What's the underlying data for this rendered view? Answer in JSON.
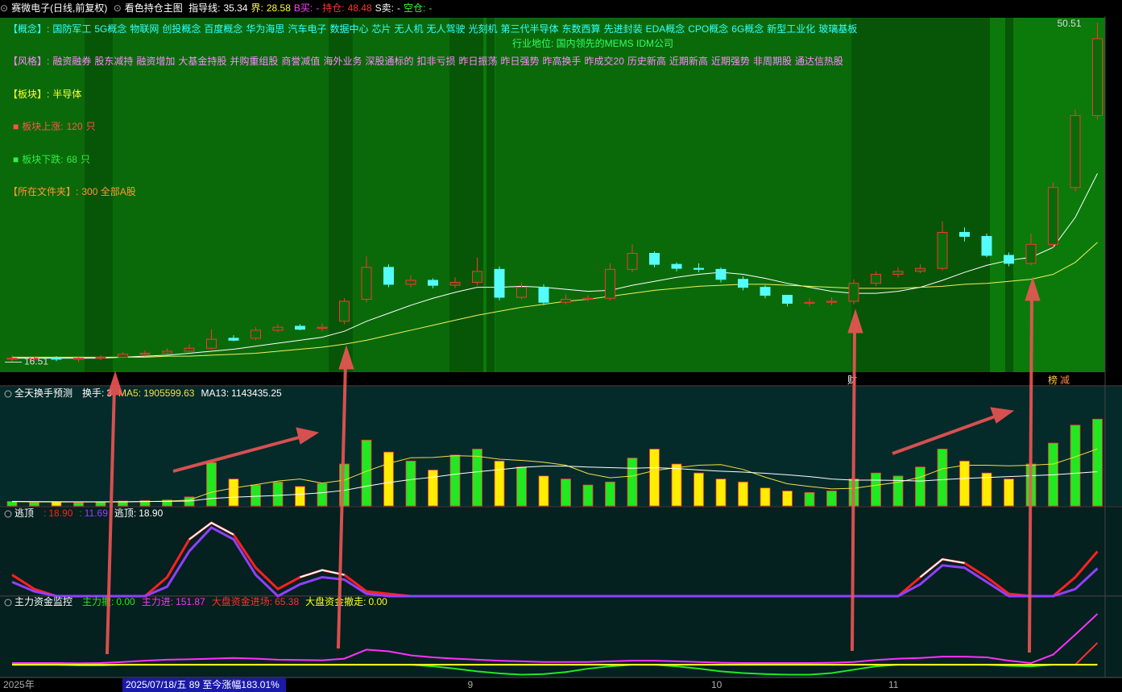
{
  "header": {
    "stock": "赛微电子(日线,前复权)",
    "indicator": "看色持仓主图",
    "items": [
      {
        "label": "指导线:",
        "value": 35.34,
        "color": "#ffffff"
      },
      {
        "label": "界:",
        "value": 28.58,
        "color": "#ffff33"
      },
      {
        "label": "B买:",
        "value": "-",
        "color": "#ff44ff"
      },
      {
        "label": "持仓:",
        "value": 48.48,
        "color": "#ff3333"
      },
      {
        "label": "S卖:",
        "value": "-",
        "color": "#ffffff"
      },
      {
        "label": "空仓:",
        "value": "-",
        "color": "#33ff33"
      }
    ]
  },
  "info": {
    "concept": {
      "label": "【概念】:",
      "items": [
        "国防军工",
        "5G概念",
        "物联网",
        "创投概念",
        "百度概念",
        "华为海思",
        "汽车电子",
        "数据中心",
        "芯片",
        "无人机",
        "无人驾驶",
        "光刻机",
        "第三代半导体",
        "东数西算",
        "先进封装",
        "EDA概念",
        "CPO概念",
        "6G概念",
        "新型工业化",
        "玻璃基板"
      ]
    },
    "position": "行业地位: 国内领先的MEMS IDM公司",
    "style": {
      "label": "【风格】:",
      "items": [
        "融资融券",
        "股东减持",
        "融资增加",
        "大基金持股",
        "并购重组股",
        "商誉减值",
        "海外业务",
        "深股通标的",
        "扣非亏损",
        "昨日振荡",
        "昨日强势",
        "昨高换手",
        "昨成交20",
        "历史新高",
        "近期新高",
        "近期强势",
        "非周期股",
        "通达信热股"
      ]
    },
    "sector": {
      "label": "【板块】:",
      "value": "半导体"
    },
    "rise": {
      "label": "板块上涨:",
      "count": 120,
      "unit": "只"
    },
    "fall": {
      "label": "板块下跌:",
      "count": 68,
      "unit": "只"
    },
    "folder": {
      "label": "【所在文件夹】:",
      "value": "300 全部A股"
    }
  },
  "markers": [
    "财",
    "榜",
    "减"
  ],
  "status": "2025/07/18/五 89 至今涨幅183.01%",
  "chart_data": [
    {
      "type": "candlestick",
      "categories": [
        "2025年",
        null,
        null,
        null,
        null,
        null,
        null,
        null,
        null,
        null,
        null,
        null,
        null,
        null,
        null,
        null,
        null,
        null,
        null,
        null,
        null,
        "9",
        null,
        null,
        null,
        null,
        null,
        null,
        null,
        null,
        null,
        null,
        "10",
        null,
        null,
        null,
        null,
        null,
        null,
        null,
        "11",
        null,
        null,
        null,
        null,
        null,
        null,
        null,
        null,
        null
      ],
      "open": [
        16.8,
        16.9,
        16.9,
        16.8,
        16.9,
        17.0,
        17.3,
        17.4,
        17.6,
        17.9,
        18.9,
        18.9,
        19.7,
        20.1,
        19.9,
        20.6,
        22.8,
        26.0,
        24.3,
        24.7,
        24.2,
        24.5,
        25.8,
        23.0,
        24.0,
        22.5,
        22.8,
        22.9,
        25.8,
        27.4,
        26.3,
        25.9,
        25.8,
        24.8,
        24.0,
        23.2,
        22.4,
        22.5,
        22.6,
        24.4,
        25.3,
        25.6,
        25.9,
        29.5,
        29.1,
        27.2,
        26.4,
        28.3,
        34.0,
        41.2
      ],
      "high": [
        17.2,
        17.1,
        17.1,
        17.1,
        17.2,
        17.5,
        17.7,
        17.9,
        18.3,
        19.8,
        19.2,
        20.0,
        20.3,
        20.3,
        20.4,
        22.9,
        27.1,
        26.3,
        25.2,
        24.9,
        25.0,
        27.0,
        26.1,
        24.5,
        24.3,
        23.3,
        23.2,
        26.4,
        28.3,
        27.6,
        26.5,
        26.4,
        26.0,
        25.1,
        24.2,
        23.1,
        22.9,
        23.0,
        24.8,
        25.6,
        26.0,
        26.3,
        30.6,
        30.0,
        29.4,
        27.5,
        29.4,
        34.5,
        41.8,
        50.51
      ],
      "low": [
        16.5,
        16.6,
        16.6,
        16.5,
        16.7,
        16.9,
        17.1,
        17.3,
        17.5,
        17.8,
        18.6,
        18.7,
        19.5,
        19.7,
        19.6,
        20.3,
        22.5,
        24.0,
        24.0,
        23.9,
        23.9,
        24.2,
        22.7,
        22.8,
        22.2,
        22.3,
        22.6,
        22.7,
        25.5,
        26.0,
        25.6,
        25.5,
        24.5,
        23.7,
        22.9,
        22.1,
        22.1,
        22.2,
        22.3,
        24.1,
        25.0,
        25.4,
        25.7,
        28.6,
        27.0,
        26.1,
        26.2,
        28.0,
        33.6,
        40.8
      ],
      "close": [
        16.9,
        16.9,
        16.8,
        16.9,
        17.0,
        17.3,
        17.4,
        17.6,
        17.9,
        18.8,
        18.7,
        19.7,
        20.0,
        19.8,
        20.0,
        22.6,
        26.0,
        24.3,
        24.7,
        24.2,
        24.5,
        25.6,
        23.0,
        24.0,
        22.5,
        22.8,
        22.9,
        25.8,
        27.4,
        26.3,
        25.9,
        25.8,
        24.8,
        24.0,
        23.2,
        22.4,
        22.5,
        22.6,
        24.4,
        25.3,
        25.6,
        25.9,
        29.5,
        29.1,
        27.2,
        26.4,
        28.3,
        34.0,
        41.2,
        48.9
      ],
      "up_color": "#ff3232",
      "down_color": "#54fcfc",
      "series": [
        {
          "color": "#ffffff",
          "values": [
            16.9,
            16.9,
            16.9,
            16.9,
            16.9,
            17.0,
            17.1,
            17.2,
            17.4,
            17.6,
            17.8,
            18.1,
            18.4,
            18.7,
            19.0,
            19.6,
            20.6,
            21.4,
            22.2,
            22.9,
            23.5,
            24.0,
            24.0,
            24.1,
            24.0,
            23.8,
            23.6,
            23.7,
            24.2,
            24.6,
            25.0,
            25.3,
            25.5,
            25.3,
            24.9,
            24.4,
            24.0,
            23.6,
            23.4,
            23.4,
            23.6,
            24.0,
            24.7,
            25.5,
            26.2,
            26.7,
            27.0,
            28.0,
            31.0,
            35.4
          ]
        },
        {
          "color": "#f0f060",
          "values": [
            17.0,
            17.0,
            17.0,
            17.0,
            17.0,
            17.0,
            17.0,
            17.1,
            17.1,
            17.2,
            17.3,
            17.4,
            17.6,
            17.8,
            18.0,
            18.3,
            18.7,
            19.2,
            19.7,
            20.2,
            20.7,
            21.2,
            21.6,
            22.0,
            22.3,
            22.6,
            22.8,
            23.1,
            23.4,
            23.7,
            23.9,
            24.1,
            24.2,
            24.3,
            24.3,
            24.2,
            24.1,
            24.0,
            23.9,
            23.9,
            23.9,
            24.0,
            24.1,
            24.3,
            24.4,
            24.6,
            24.8,
            25.3,
            26.5,
            28.5
          ]
        }
      ],
      "high_label": 50.51,
      "low_label": 16.51,
      "ylim": [
        15.5,
        51
      ]
    },
    {
      "type": "bar",
      "title": "全天换手预测",
      "ylim": [
        0,
        3500000
      ],
      "series": [
        {
          "name": "换手:",
          "legend_value": "3",
          "style": "bar",
          "color": "#22e822",
          "down_color": "#ffee00",
          "legend_color": "#ffffff",
          "values": [
            150000,
            120000,
            130000,
            110000,
            140000,
            160000,
            180000,
            200000,
            300000,
            1450000,
            900000,
            700000,
            800000,
            650000,
            750000,
            1400000,
            2200000,
            1800000,
            1500000,
            1200000,
            1700000,
            1900000,
            1500000,
            1300000,
            1000000,
            900000,
            700000,
            800000,
            1600000,
            1900000,
            1400000,
            1100000,
            900000,
            800000,
            600000,
            500000,
            450000,
            500000,
            900000,
            1100000,
            1000000,
            1300000,
            1900000,
            1500000,
            1100000,
            900000,
            1400000,
            2100000,
            2700000,
            2900000
          ]
        },
        {
          "name": "MA5:",
          "style": "line",
          "color": "#f0e040",
          "values": [
            140000,
            135000,
            130000,
            132000,
            130000,
            132000,
            144000,
            158000,
            196000,
            458000,
            598000,
            710000,
            830000,
            900000,
            760000,
            860000,
            1160000,
            1420000,
            1610000,
            1620000,
            1680000,
            1660000,
            1560000,
            1520000,
            1460000,
            1360000,
            1080000,
            940000,
            1000000,
            1180000,
            1280000,
            1360000,
            1380000,
            1220000,
            960000,
            740000,
            650000,
            570000,
            590000,
            690000,
            790000,
            960000,
            1240000,
            1360000,
            1360000,
            1340000,
            1360000,
            1400000,
            1640000,
            1905599.63
          ]
        },
        {
          "name": "MA13:",
          "style": "line",
          "color": "#ffffff",
          "values": [
            150000,
            145000,
            140000,
            138000,
            137000,
            140000,
            145000,
            150000,
            160000,
            250000,
            290000,
            320000,
            350000,
            390000,
            440000,
            520000,
            660000,
            780000,
            880000,
            960000,
            1060000,
            1140000,
            1210000,
            1290000,
            1330000,
            1330000,
            1300000,
            1280000,
            1260000,
            1280000,
            1250000,
            1200000,
            1160000,
            1130000,
            1090000,
            1040000,
            980000,
            900000,
            860000,
            860000,
            850000,
            830000,
            880000,
            920000,
            950000,
            980000,
            1010000,
            1040000,
            1090000,
            1143435.25
          ]
        }
      ]
    },
    {
      "type": "line",
      "title": "逃顶",
      "ylim": [
        0,
        32
      ],
      "series": [
        {
          "name": ":",
          "legend_value": "18.90",
          "color": "#ff2020",
          "width": 3,
          "values": [
            9,
            3,
            0,
            0,
            0,
            0,
            0,
            8,
            24,
            31,
            26,
            12,
            3,
            8,
            11,
            9,
            2,
            1,
            0,
            0,
            0,
            0,
            0,
            0,
            0,
            0,
            0,
            0,
            0,
            0,
            0,
            0,
            0,
            0,
            0,
            0,
            0,
            0,
            0,
            0,
            0,
            8,
            15.6,
            14,
            8,
            1,
            0,
            0,
            8,
            18.9
          ]
        },
        {
          "name": ":",
          "legend_value": "11.69",
          "color": "#9040ff",
          "width": 3,
          "values": [
            6,
            2,
            0,
            0,
            0,
            0,
            0,
            4,
            19,
            29,
            24,
            9,
            0,
            5,
            8,
            7,
            1,
            0,
            0,
            0,
            0,
            0,
            0,
            0,
            0,
            0,
            0,
            0,
            0,
            0,
            0,
            0,
            0,
            0,
            0,
            0,
            0,
            0,
            0,
            0,
            0,
            5,
            13,
            12,
            6,
            0,
            0,
            0,
            3,
            11.69
          ]
        },
        {
          "name": "逃顶:",
          "legend_value": "18.90",
          "color": "#ffffff",
          "width": 2,
          "values": [
            null,
            null,
            null,
            null,
            null,
            null,
            null,
            null,
            24,
            31,
            26,
            null,
            null,
            8,
            11,
            9,
            null,
            null,
            null,
            null,
            null,
            null,
            null,
            null,
            null,
            null,
            null,
            null,
            null,
            null,
            null,
            null,
            null,
            null,
            null,
            null,
            null,
            null,
            null,
            null,
            null,
            8,
            15.6,
            14,
            null,
            null,
            null,
            null,
            null,
            null
          ]
        }
      ]
    },
    {
      "type": "line",
      "title": "主力资金监控",
      "ylim": [
        -48,
        164
      ],
      "series": [
        {
          "name": "主力撤:",
          "legend_value": "0.00",
          "color": "#22e822",
          "width": 2,
          "values": [
            0,
            0,
            0,
            -2,
            -2,
            0,
            0,
            0,
            0,
            0,
            0,
            0,
            0,
            0,
            0,
            0,
            0,
            0,
            0,
            -5,
            -12,
            -20,
            -26,
            -30,
            -28,
            -22,
            -12,
            -5,
            0,
            0,
            -5,
            -12,
            -20,
            -25,
            -28,
            -30,
            -30,
            -25,
            -15,
            -5,
            0,
            0,
            0,
            0,
            0,
            -3,
            -5,
            0,
            0,
            0
          ]
        },
        {
          "name": "主力进:",
          "color": "#ff30ff",
          "width": 2,
          "values": [
            5,
            5,
            5,
            4,
            5,
            8,
            12,
            15,
            16,
            18,
            20,
            18,
            15,
            14,
            13,
            18,
            45,
            40,
            28,
            22,
            18,
            15,
            12,
            10,
            8,
            8,
            8,
            10,
            12,
            12,
            10,
            8,
            6,
            5,
            5,
            5,
            5,
            6,
            8,
            14,
            18,
            20,
            24,
            24,
            22,
            12,
            5,
            30,
            90,
            151.87
          ]
        },
        {
          "name": "大盘资金进场:",
          "color": "#ff3030",
          "width": 2,
          "values": [
            null,
            null,
            null,
            null,
            null,
            null,
            null,
            null,
            null,
            null,
            null,
            null,
            null,
            null,
            null,
            null,
            null,
            null,
            null,
            null,
            null,
            null,
            null,
            null,
            null,
            null,
            null,
            null,
            null,
            null,
            null,
            null,
            null,
            null,
            null,
            null,
            null,
            null,
            null,
            null,
            null,
            null,
            null,
            null,
            null,
            null,
            null,
            0,
            0,
            65.38
          ]
        },
        {
          "name": "大盘资金撤走:",
          "legend_value": "0.00",
          "color": "#ffff20",
          "width": 2,
          "values": [
            0,
            0,
            0,
            0,
            0,
            0,
            0,
            0,
            0,
            0,
            0,
            0,
            0,
            0,
            0,
            0,
            0,
            0,
            0,
            0,
            0,
            0,
            0,
            0,
            0,
            0,
            0,
            0,
            0,
            0,
            0,
            0,
            0,
            0,
            0,
            0,
            0,
            0,
            0,
            0,
            0,
            0,
            0,
            0,
            0,
            0,
            0,
            0,
            0,
            0
          ]
        }
      ]
    }
  ]
}
